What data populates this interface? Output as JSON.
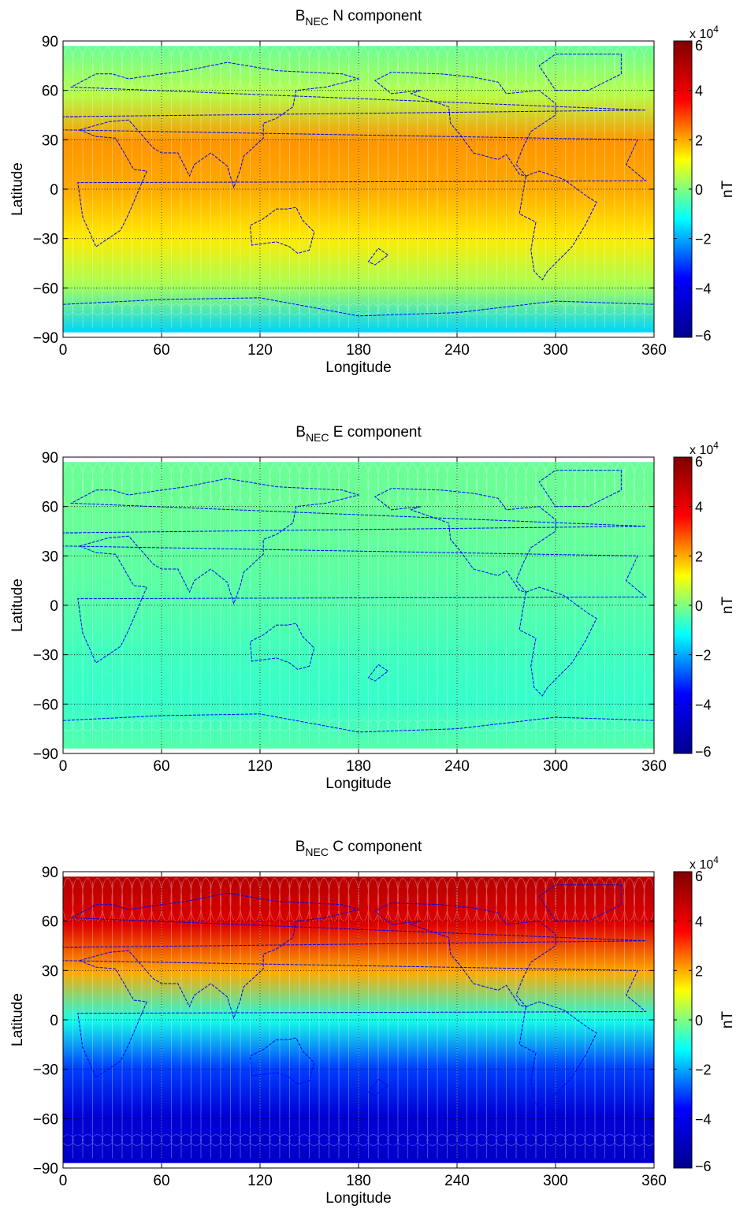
{
  "figure": {
    "colormap": [
      "#00008f",
      "#0000ff",
      "#00ffff",
      "#ffff00",
      "#ff0000",
      "#800000"
    ],
    "coastline_color": "#0000ff",
    "grid_style": "dotted"
  },
  "chart_data": [
    {
      "type": "heatmap",
      "title": "B",
      "title_sub": "NEC",
      "title_rest": " N component",
      "xlabel": "Longitude",
      "ylabel": "Latitude",
      "xlim": [
        0,
        360
      ],
      "ylim": [
        -90,
        90
      ],
      "x_ticks": [
        "0",
        "60",
        "120",
        "180",
        "240",
        "300",
        "360"
      ],
      "y_ticks": [
        "90",
        "60",
        "30",
        "0",
        "−30",
        "−60",
        "−90"
      ],
      "grid": true,
      "colorbar": {
        "label": "nT",
        "ticks": [
          "6",
          "4",
          "2",
          "0",
          "−2",
          "−4",
          "−6"
        ],
        "exponent_base": "x 10",
        "exponent_power": "4",
        "range": [
          -60000,
          60000
        ]
      },
      "field_profile": {
        "latitude": [
          90,
          60,
          30,
          0,
          -30,
          -60,
          -90
        ],
        "value_nT": [
          -2000,
          5000,
          22000,
          20000,
          14000,
          4000,
          -16000
        ]
      }
    },
    {
      "type": "heatmap",
      "title": "B",
      "title_sub": "NEC",
      "title_rest": " E component",
      "xlabel": "Longitude",
      "ylabel": "Latitude",
      "xlim": [
        0,
        360
      ],
      "ylim": [
        -90,
        90
      ],
      "x_ticks": [
        "0",
        "60",
        "120",
        "180",
        "240",
        "300",
        "360"
      ],
      "y_ticks": [
        "90",
        "60",
        "30",
        "0",
        "−30",
        "−60",
        "−90"
      ],
      "grid": true,
      "colorbar": {
        "label": "nT",
        "ticks": [
          "6",
          "4",
          "2",
          "0",
          "−2",
          "−4",
          "−6"
        ],
        "exponent_base": "x 10",
        "exponent_power": "4",
        "range": [
          -60000,
          60000
        ]
      },
      "field_profile": {
        "latitude": [
          90,
          60,
          30,
          0,
          -30,
          -60,
          -90
        ],
        "value_nT": [
          -2000,
          -2000,
          -3000,
          -4000,
          -6000,
          -7000,
          -4000
        ]
      }
    },
    {
      "type": "heatmap",
      "title": "B",
      "title_sub": "NEC",
      "title_rest": " C component",
      "xlabel": "Longitude",
      "ylabel": "Latitude",
      "xlim": [
        0,
        360
      ],
      "ylim": [
        -90,
        90
      ],
      "x_ticks": [
        "0",
        "60",
        "120",
        "180",
        "240",
        "300",
        "360"
      ],
      "y_ticks": [
        "90",
        "60",
        "30",
        "0",
        "−30",
        "−60",
        "−90"
      ],
      "grid": true,
      "colorbar": {
        "label": "nT",
        "ticks": [
          "6",
          "4",
          "2",
          "0",
          "−2",
          "−4",
          "−6"
        ],
        "exponent_base": "x 10",
        "exponent_power": "4",
        "range": [
          -60000,
          60000
        ]
      },
      "field_profile": {
        "latitude": [
          90,
          60,
          30,
          0,
          -30,
          -60,
          -90
        ],
        "value_nT": [
          50000,
          42000,
          20000,
          -10000,
          -30000,
          -45000,
          -48000
        ]
      }
    }
  ]
}
